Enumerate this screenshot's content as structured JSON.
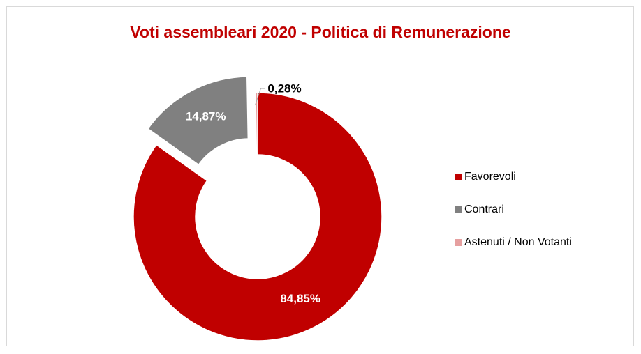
{
  "chart_data": {
    "type": "pie",
    "subtype": "doughnut",
    "title": "Voti assembleari 2020 - Politica di Remunerazione",
    "title_color": "#c00000",
    "categories": [
      "Favorevoli",
      "Contrari",
      "Astenuti / Non Votanti"
    ],
    "values": [
      84.85,
      14.87,
      0.28
    ],
    "labels": [
      "84,85%",
      "14,87%",
      "0,28%"
    ],
    "colors": [
      "#c00000",
      "#808080",
      "#e6a0a0"
    ],
    "label_colors": [
      "#ffffff",
      "#ffffff",
      "#000000"
    ],
    "legend_position": "right",
    "exploded": [
      false,
      true,
      false
    ]
  }
}
